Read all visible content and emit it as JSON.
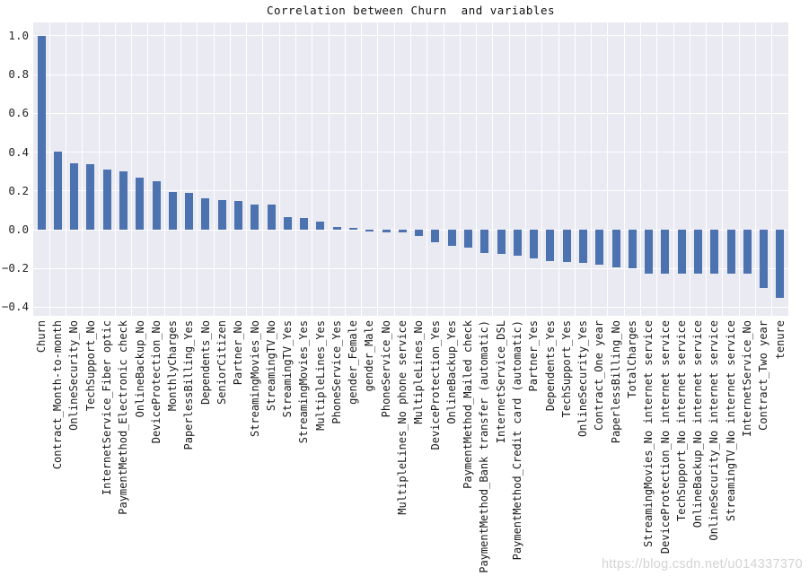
{
  "title": "Correlation between Churn  and variables",
  "watermark": {
    "text": "https://blog.csdn.net/u014337370"
  },
  "colors": {
    "bar": "#4C72B0",
    "plot_background": "#EAEAF2",
    "gridline": "#FFFFFF",
    "tick_text": "#262626",
    "title_text": "#111111",
    "watermark_text": "#CCCCCC"
  },
  "chart_data": {
    "type": "bar",
    "title": "Correlation between Churn  and variables",
    "xlabel": "",
    "ylabel": "",
    "grid": true,
    "legend": false,
    "ylim": [
      -0.444,
      1.069
    ],
    "yticks": [
      1.0,
      0.8,
      0.6,
      0.4,
      0.2,
      0.0,
      -0.2,
      -0.4
    ],
    "ytick_labels": [
      "1.0",
      "0.8",
      "0.6",
      "0.4",
      "0.2",
      "0.0",
      "−0.2",
      "−0.4"
    ],
    "categories": [
      "Churn",
      "Contract_Month-to-month",
      "OnlineSecurity_No",
      "TechSupport_No",
      "InternetService_Fiber optic",
      "PaymentMethod_Electronic check",
      "OnlineBackup_No",
      "DeviceProtection_No",
      "MonthlyCharges",
      "PaperlessBilling_Yes",
      "Dependents_No",
      "SeniorCitizen",
      "Partner_No",
      "StreamingMovies_No",
      "StreamingTV_No",
      "StreamingTV_Yes",
      "StreamingMovies_Yes",
      "MultipleLines_Yes",
      "PhoneService_Yes",
      "gender_Female",
      "gender_Male",
      "PhoneService_No",
      "MultipleLines_No phone service",
      "MultipleLines_No",
      "DeviceProtection_Yes",
      "OnlineBackup_Yes",
      "PaymentMethod_Mailed check",
      "PaymentMethod_Bank transfer (automatic)",
      "InternetService_DSL",
      "PaymentMethod_Credit card (automatic)",
      "Partner_Yes",
      "Dependents_Yes",
      "TechSupport_Yes",
      "OnlineSecurity_Yes",
      "Contract_One year",
      "PaperlessBilling_No",
      "TotalCharges",
      "StreamingMovies_No internet service",
      "DeviceProtection_No internet service",
      "TechSupport_No internet service",
      "OnlineBackup_No internet service",
      "OnlineSecurity_No internet service",
      "StreamingTV_No internet service",
      "InternetService_No",
      "Contract_Two year",
      "tenure"
    ],
    "values": [
      1.0,
      0.405,
      0.343,
      0.337,
      0.308,
      0.302,
      0.268,
      0.252,
      0.193,
      0.192,
      0.164,
      0.151,
      0.15,
      0.13,
      0.128,
      0.063,
      0.061,
      0.04,
      0.012,
      0.009,
      -0.009,
      -0.012,
      -0.012,
      -0.033,
      -0.066,
      -0.082,
      -0.091,
      -0.118,
      -0.124,
      -0.134,
      -0.15,
      -0.164,
      -0.165,
      -0.171,
      -0.178,
      -0.192,
      -0.199,
      -0.228,
      -0.228,
      -0.228,
      -0.228,
      -0.228,
      -0.228,
      -0.228,
      -0.302,
      -0.352
    ]
  }
}
